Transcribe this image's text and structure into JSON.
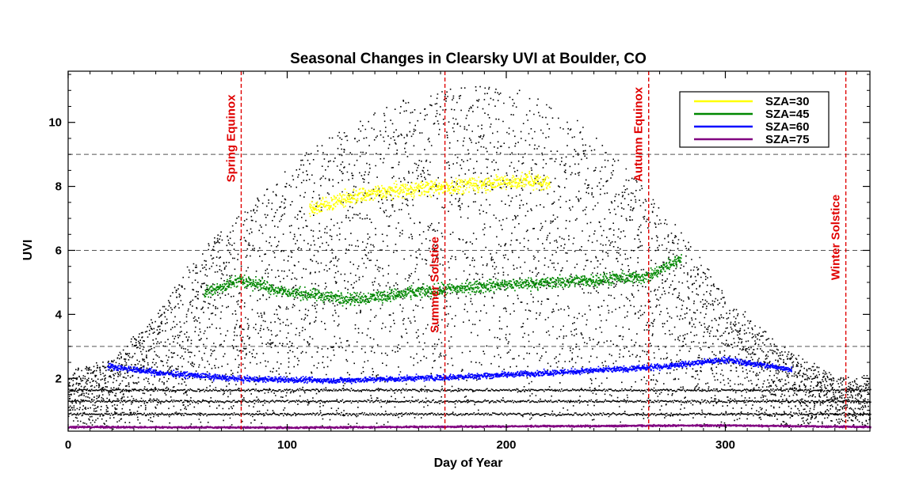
{
  "colors": {
    "background": "#ffffff",
    "axes": "#000000",
    "scatter_all": "#000000",
    "reference_line": "#555555",
    "event_line": "#e00000",
    "sza30": "#ffff00",
    "sza45": "#008800",
    "sza60": "#0000ff",
    "sza75": "#800080"
  },
  "chart_data": {
    "type": "scatter",
    "title": "Seasonal Changes in Clearsky UVI at Boulder, CO",
    "xlabel": "Day of Year",
    "ylabel": "UVI",
    "xlim": [
      0,
      366
    ],
    "ylim": [
      0.35,
      11.6
    ],
    "x_ticks": [
      0,
      100,
      200,
      300
    ],
    "y_ticks": [
      2,
      4,
      6,
      8,
      10
    ],
    "grid": "horizontal dashed reference lines at UVI 3, 6, 9",
    "reference_lines_y": [
      3,
      6,
      9
    ],
    "legend": {
      "placement": "top-right",
      "entries": [
        {
          "label": "SZA=30",
          "color": "#ffff00"
        },
        {
          "label": "SZA=45",
          "color": "#008800"
        },
        {
          "label": "SZA=60",
          "color": "#0000ff"
        },
        {
          "label": "SZA=75",
          "color": "#800080"
        }
      ]
    },
    "event_lines": [
      {
        "label": "Spring Equinox",
        "day": 79
      },
      {
        "label": "Summer Solstice",
        "day": 172
      },
      {
        "label": "Autumn Equinox",
        "day": 265
      },
      {
        "label": "Winter Solstice",
        "day": 355
      }
    ],
    "envelope_max": {
      "x": [
        0,
        20,
        40,
        60,
        79,
        100,
        120,
        150,
        172,
        190,
        210,
        230,
        250,
        265,
        280,
        300,
        320,
        340,
        355,
        366
      ],
      "y": [
        2.2,
        2.6,
        4.0,
        6.0,
        7.2,
        8.6,
        9.6,
        10.8,
        11.1,
        11.2,
        10.9,
        10.2,
        9.0,
        7.8,
        6.6,
        4.6,
        3.3,
        2.4,
        2.0,
        2.1
      ]
    },
    "envelope_min": {
      "x": [
        0,
        100,
        200,
        300,
        366
      ],
      "y": [
        0.5,
        0.5,
        0.5,
        0.5,
        0.5
      ]
    },
    "sza_series": [
      {
        "name": "SZA=30",
        "x_range": [
          110,
          220
        ],
        "x": [
          110,
          130,
          150,
          172,
          190,
          210,
          220
        ],
        "y": [
          7.3,
          7.7,
          7.9,
          8.0,
          8.1,
          8.2,
          8.1
        ]
      },
      {
        "name": "SZA=45",
        "x_range": [
          62,
          280
        ],
        "x": [
          62,
          79,
          100,
          130,
          172,
          200,
          230,
          265,
          280
        ],
        "y": [
          4.7,
          5.1,
          4.7,
          4.5,
          4.8,
          4.95,
          5.05,
          5.2,
          5.8
        ]
      },
      {
        "name": "SZA=60",
        "x_range": [
          18,
          330
        ],
        "x": [
          18,
          40,
          79,
          120,
          172,
          220,
          265,
          300,
          330
        ],
        "y": [
          2.4,
          2.2,
          2.0,
          1.95,
          2.05,
          2.2,
          2.35,
          2.6,
          2.3
        ]
      },
      {
        "name": "SZA=75",
        "x_range": [
          0,
          366
        ],
        "x": [
          0,
          100,
          200,
          300,
          366
        ],
        "y": [
          0.5,
          0.48,
          0.52,
          0.55,
          0.5
        ]
      }
    ]
  }
}
